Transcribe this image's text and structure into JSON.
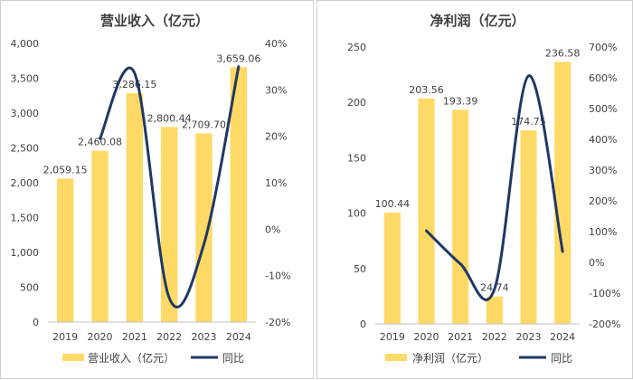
{
  "colors": {
    "bar": "#FFD966",
    "line": "#1F3864",
    "axis": "#333333",
    "text": "#404040"
  },
  "chart_data": [
    {
      "type": "bar",
      "title": "营业收入（亿元）",
      "categories": [
        "2019",
        "2020",
        "2021",
        "2022",
        "2023",
        "2024"
      ],
      "bar_series": {
        "name": "营业收入（亿元）",
        "values": [
          2059.15,
          2460.08,
          3286.15,
          2800.44,
          2709.7,
          3659.06
        ]
      },
      "bar_labels": [
        "2,059.15",
        "2,460.08",
        "3,286.15",
        "2,800.44",
        "2,709.70",
        "3,659.06"
      ],
      "line_series": {
        "name": "同比",
        "values": [
          null,
          19.5,
          33.6,
          -14.8,
          -3.2,
          35.0
        ]
      },
      "y_left": {
        "min": 0,
        "max": 4000,
        "ticks": [
          "0",
          "500",
          "1,000",
          "1,500",
          "2,000",
          "2,500",
          "3,000",
          "3,500",
          "4,000"
        ]
      },
      "y_right": {
        "min": -20,
        "max": 40,
        "ticks": [
          "-20%",
          "-10%",
          "0%",
          "10%",
          "20%",
          "30%",
          "40%"
        ]
      },
      "legend": [
        "营业收入（亿元）",
        "同比"
      ]
    },
    {
      "type": "bar",
      "title": "净利润（亿元）",
      "categories": [
        "2019",
        "2020",
        "2021",
        "2022",
        "2023",
        "2024"
      ],
      "bar_series": {
        "name": "净利润（亿元）",
        "values": [
          100.44,
          203.56,
          193.39,
          24.74,
          174.75,
          236.58
        ]
      },
      "bar_labels": [
        "100.44",
        "203.56",
        "193.39",
        "24.74",
        "174.75",
        "236.58"
      ],
      "line_series": {
        "name": "同比",
        "values": [
          null,
          102.7,
          -5.0,
          -87.2,
          606.3,
          35.4
        ]
      },
      "y_left": {
        "min": 0,
        "max": 250,
        "ticks": [
          "0",
          "50",
          "100",
          "150",
          "200",
          "250"
        ]
      },
      "y_right": {
        "min": -200,
        "max": 700,
        "ticks": [
          "-200%",
          "-100%",
          "0%",
          "100%",
          "200%",
          "300%",
          "400%",
          "500%",
          "600%",
          "700%"
        ]
      },
      "legend": [
        "净利润（亿元）",
        "同比"
      ]
    }
  ]
}
